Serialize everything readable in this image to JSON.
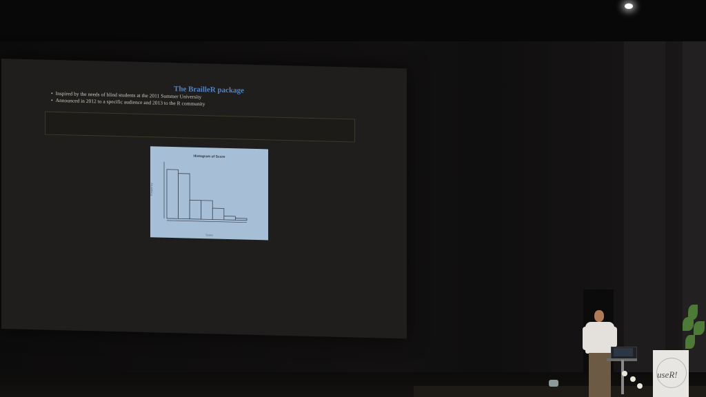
{
  "slide": {
    "title": "The BrailleR package",
    "bullets": [
      "Inspired by the needs of blind students at the 2011 Summer University",
      "Announced in 2012 to a specific audience and 2013 to the R community"
    ],
    "plot_title": "Histogram of Score",
    "plot_xlabel": "Score",
    "plot_ylabel": "Frequency"
  },
  "chart_data": {
    "type": "bar",
    "title": "Histogram of Score",
    "categories": [
      "0-10",
      "10-20",
      "20-30",
      "30-40",
      "40-50",
      "50-60",
      "60-70"
    ],
    "values": [
      26,
      24,
      10,
      10,
      6,
      2,
      1
    ],
    "ylim": [
      0,
      30
    ],
    "colors": {
      "background": "#a7bfd6",
      "bar_outline": "#3a4552",
      "bar_fill": "#a7bfd6"
    }
  },
  "podium": {
    "logo_text": "useR!"
  },
  "colors": {
    "title": "#4f84c4",
    "screen": "#1f1e1c",
    "room": "#0b0a0a"
  }
}
